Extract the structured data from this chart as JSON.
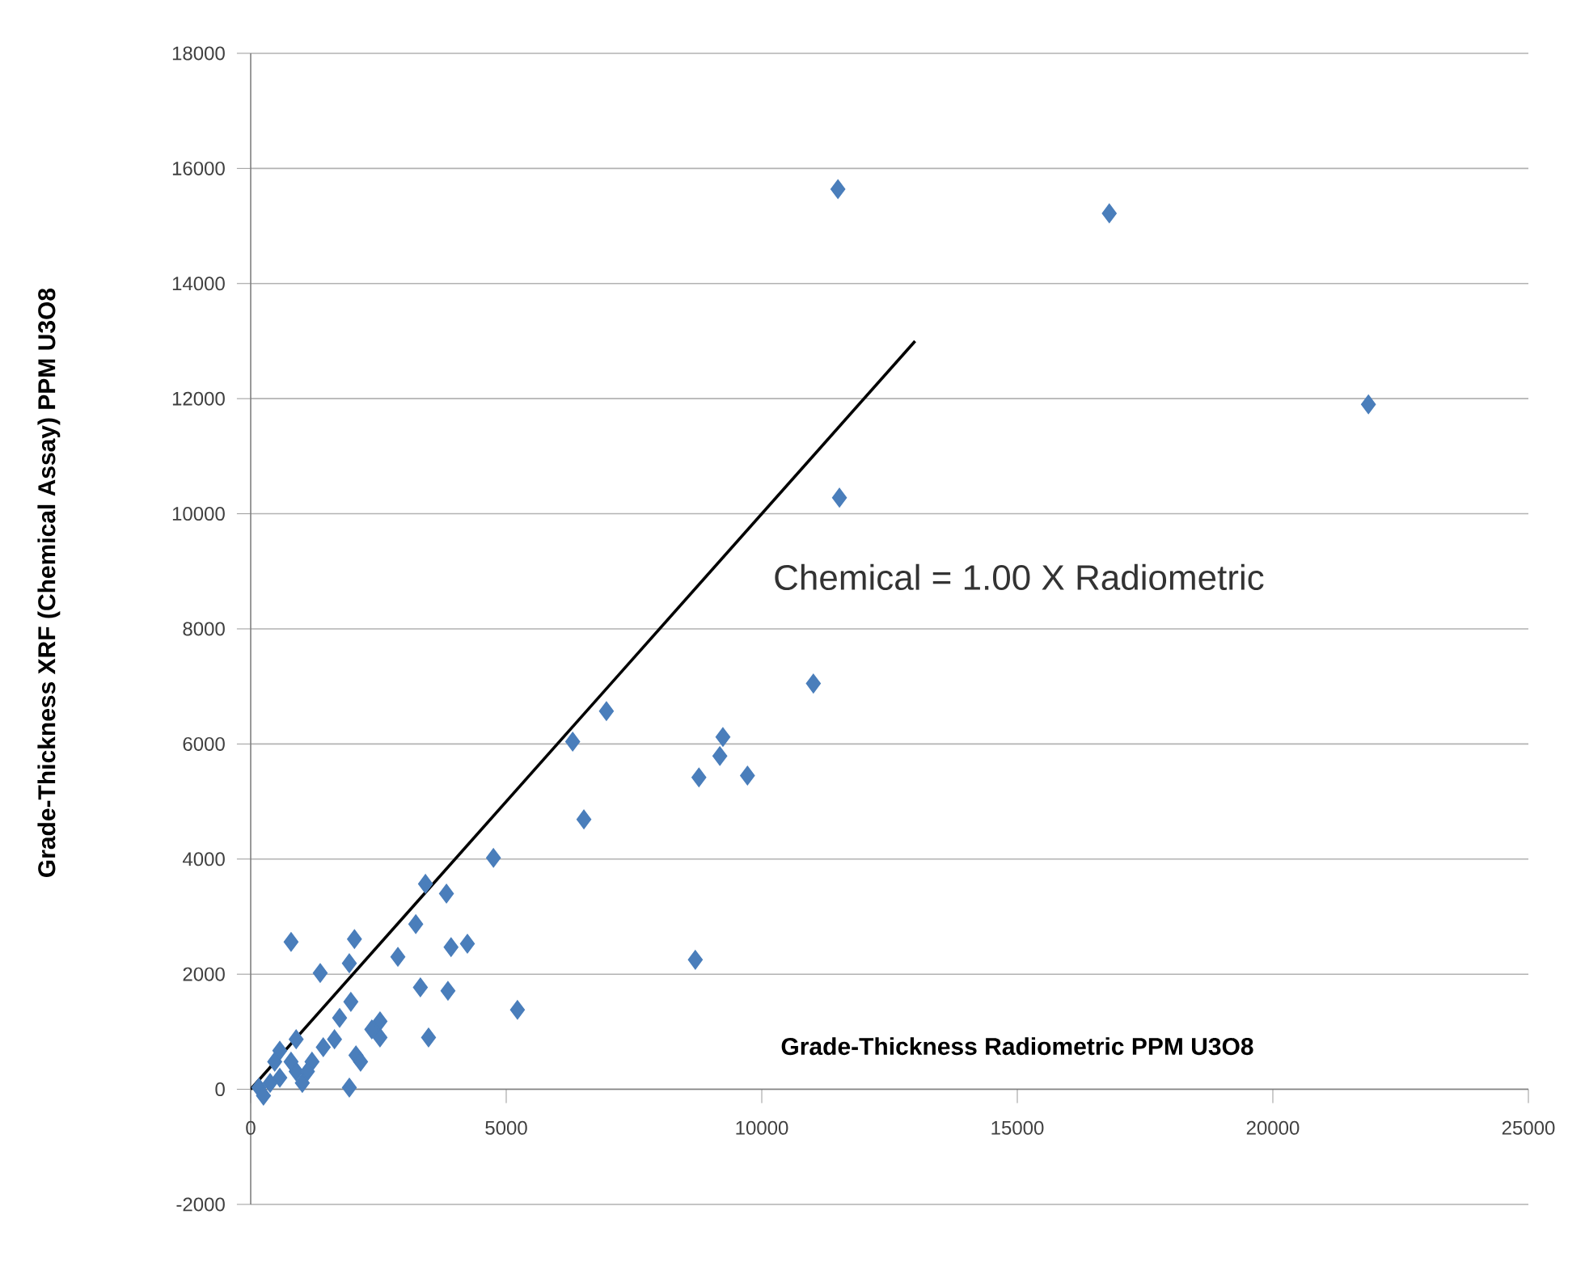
{
  "chart_data": {
    "type": "scatter",
    "xlabel": "Grade-Thickness Radiometric  PPM U3O8",
    "ylabel": "Grade-Thickness XRF (Chemical Assay) PPM U3O8",
    "annotations": [
      "Chemical = 1.00  X Radiometric"
    ],
    "xlim": [
      0,
      25000
    ],
    "ylim": [
      -2000,
      18000
    ],
    "xticks": [
      0,
      5000,
      10000,
      15000,
      20000,
      25000
    ],
    "yticks": [
      -2000,
      0,
      2000,
      4000,
      6000,
      8000,
      10000,
      12000,
      14000,
      16000,
      18000
    ],
    "grid": "y",
    "series": [
      {
        "color": "#4a7ebb",
        "marker": "diamond",
        "x": [
          11490,
          16800,
          21870,
          11520,
          11010,
          6960,
          6300,
          9240,
          9180,
          8770,
          9720,
          6520,
          4750,
          8700,
          5220,
          790,
          2030,
          3420,
          3830,
          3230,
          2880,
          1360,
          1930,
          3920,
          4240,
          3320,
          3860,
          3480,
          2530,
          2530,
          1930,
          1960,
          1740,
          1640,
          2060,
          1420,
          1200,
          890,
          570,
          380,
          160,
          250,
          1010,
          790,
          570,
          890,
          470,
          1110,
          2150,
          2370
        ],
        "values": [
          15640,
          15220,
          11900,
          10280,
          7050,
          6570,
          6040,
          6120,
          5790,
          5420,
          5450,
          4690,
          4020,
          2250,
          1380,
          2560,
          2610,
          3570,
          3400,
          2870,
          2300,
          2020,
          2190,
          2470,
          2530,
          1770,
          1710,
          900,
          1180,
          900,
          30,
          1520,
          1240,
          870,
          590,
          730,
          480,
          310,
          200,
          110,
          30,
          -110,
          110,
          480,
          670,
          870,
          480,
          310,
          480,
          1040
        ]
      },
      {
        "type": "line",
        "color": "#000000",
        "x": [
          0,
          13000
        ],
        "values": [
          0,
          13000
        ]
      }
    ]
  }
}
